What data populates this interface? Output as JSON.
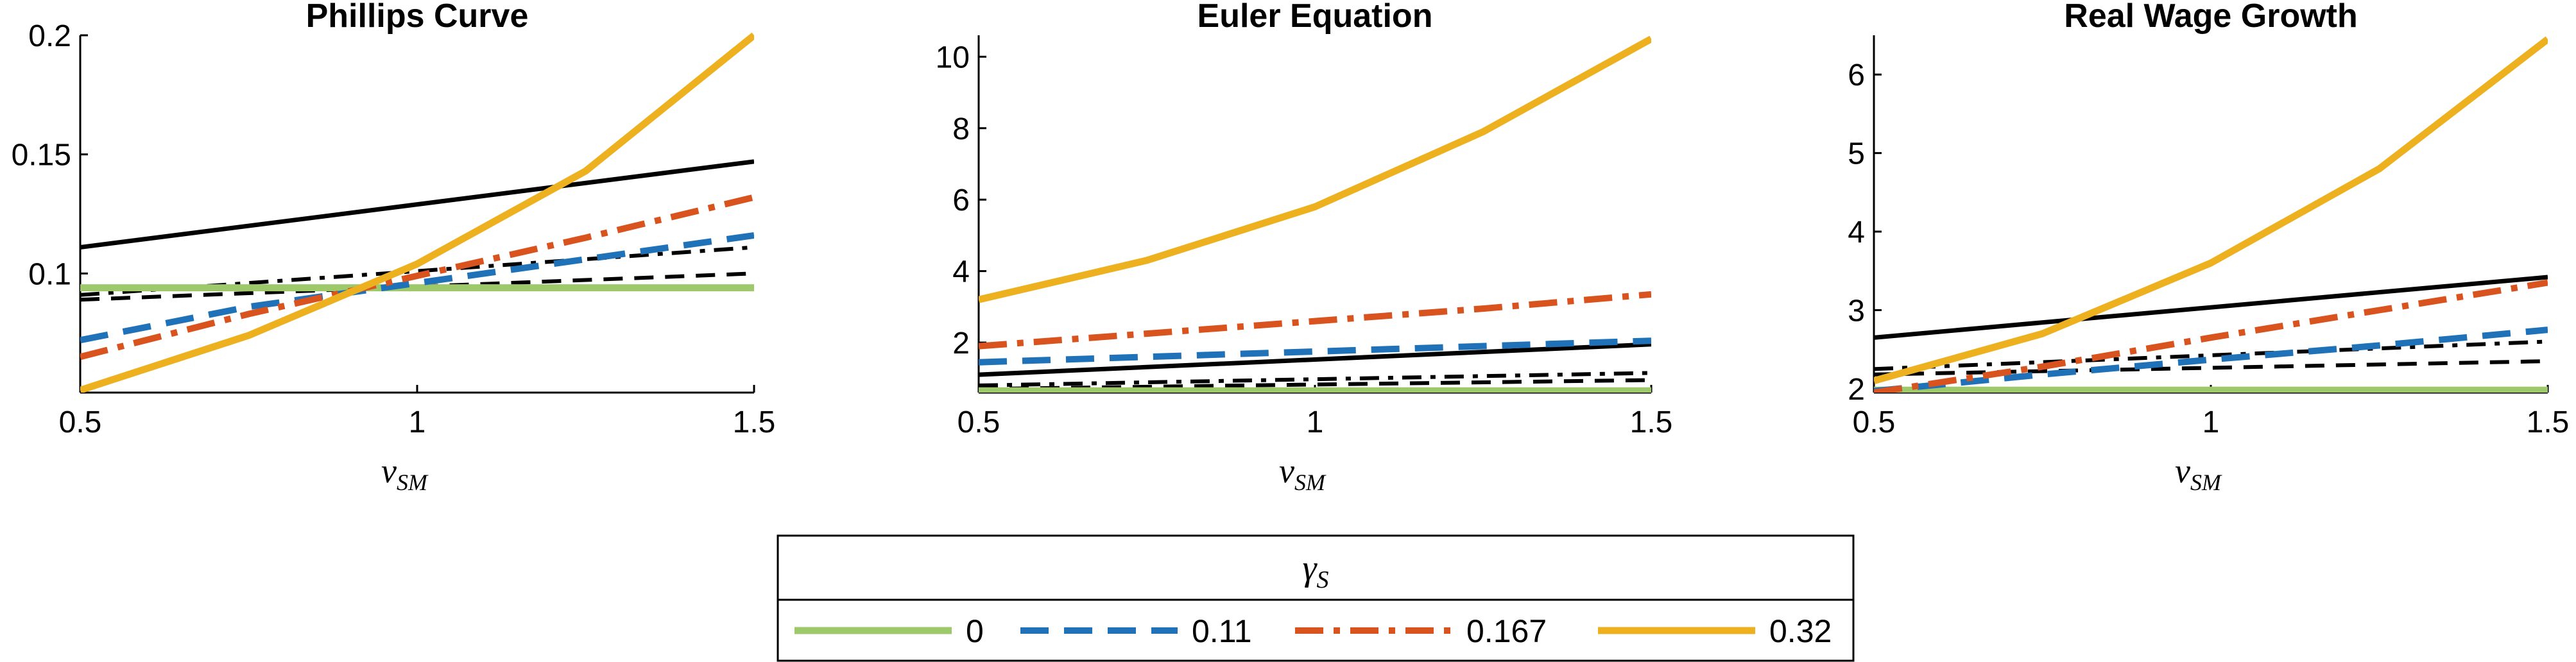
{
  "chart_data": [
    {
      "type": "line",
      "title": "Phillips Curve",
      "xlabel": "ν",
      "xlabel_sub": "SM",
      "xlim": [
        0.5,
        1.5
      ],
      "ylim": [
        0.05,
        0.2
      ],
      "xticks": [
        "0.5",
        "1",
        "1.5"
      ],
      "yticks": [
        "0.1",
        "0.15",
        "0.2"
      ],
      "series": [
        {
          "name": "0",
          "x": [
            0.5,
            1.5
          ],
          "y": [
            0.094,
            0.094
          ]
        },
        {
          "name": "0.11",
          "x": [
            0.5,
            0.75,
            1.0,
            1.25,
            1.5
          ],
          "y": [
            0.072,
            0.086,
            0.096,
            0.106,
            0.116
          ]
        },
        {
          "name": "0.167",
          "x": [
            0.5,
            0.75,
            1.0,
            1.25,
            1.5
          ],
          "y": [
            0.065,
            0.083,
            0.099,
            0.115,
            0.132
          ]
        },
        {
          "name": "0.32",
          "x": [
            0.5,
            0.75,
            1.0,
            1.25,
            1.5
          ],
          "y": [
            0.051,
            0.074,
            0.104,
            0.143,
            0.2
          ]
        },
        {
          "x": [
            0.5,
            1.5
          ],
          "y": [
            0.111,
            0.147
          ]
        },
        {
          "x": [
            0.5,
            1.5
          ],
          "y": [
            0.091,
            0.111
          ]
        },
        {
          "x": [
            0.5,
            1.5
          ],
          "y": [
            0.089,
            0.1
          ]
        }
      ]
    },
    {
      "type": "line",
      "title": "Euler Equation",
      "xlabel": "ν",
      "xlabel_sub": "SM",
      "xlim": [
        0.5,
        1.5
      ],
      "ylim": [
        0.6,
        10.6
      ],
      "xticks": [
        "0.5",
        "1",
        "1.5"
      ],
      "yticks": [
        "2",
        "4",
        "6",
        "8",
        "10"
      ],
      "series": [
        {
          "name": "0",
          "x": [
            0.5,
            1.5
          ],
          "y": [
            0.65,
            0.65
          ]
        },
        {
          "name": "0.11",
          "x": [
            0.5,
            1.5
          ],
          "y": [
            1.45,
            2.05
          ]
        },
        {
          "name": "0.167",
          "x": [
            0.5,
            0.75,
            1.0,
            1.25,
            1.5
          ],
          "y": [
            1.9,
            2.25,
            2.6,
            2.95,
            3.35
          ]
        },
        {
          "name": "0.32",
          "x": [
            0.5,
            0.75,
            1.0,
            1.25,
            1.5
          ],
          "y": [
            3.2,
            4.3,
            5.8,
            7.9,
            10.5
          ]
        },
        {
          "x": [
            0.5,
            1.5
          ],
          "y": [
            1.1,
            1.95
          ]
        },
        {
          "x": [
            0.5,
            1.5
          ],
          "y": [
            0.8,
            1.15
          ]
        },
        {
          "x": [
            0.5,
            1.5
          ],
          "y": [
            0.7,
            0.95
          ]
        }
      ]
    },
    {
      "type": "line",
      "title": "Real Wage Growth",
      "xlabel": "ν",
      "xlabel_sub": "SM",
      "xlim": [
        0.5,
        1.5
      ],
      "ylim": [
        1.95,
        6.5
      ],
      "xticks": [
        "0.5",
        "1",
        "1.5"
      ],
      "yticks": [
        "2",
        "3",
        "4",
        "5",
        "6"
      ],
      "series": [
        {
          "name": "0",
          "x": [
            0.5,
            1.5
          ],
          "y": [
            1.98,
            1.98
          ]
        },
        {
          "name": "0.11",
          "x": [
            0.5,
            0.75,
            1.0,
            1.25,
            1.5
          ],
          "y": [
            1.97,
            2.18,
            2.37,
            2.55,
            2.75
          ]
        },
        {
          "name": "0.167",
          "x": [
            0.5,
            0.75,
            1.0,
            1.25,
            1.5
          ],
          "y": [
            1.95,
            2.28,
            2.65,
            3.0,
            3.35
          ]
        },
        {
          "name": "0.32",
          "x": [
            0.5,
            0.75,
            1.0,
            1.25,
            1.5
          ],
          "y": [
            2.1,
            2.7,
            3.6,
            4.8,
            6.45
          ]
        },
        {
          "x": [
            0.5,
            1.5
          ],
          "y": [
            2.65,
            3.42
          ]
        },
        {
          "x": [
            0.5,
            1.5
          ],
          "y": [
            2.25,
            2.6
          ]
        },
        {
          "x": [
            0.5,
            1.5
          ],
          "y": [
            2.18,
            2.35
          ]
        }
      ]
    }
  ],
  "legend": {
    "title": "γ",
    "title_sub": "S",
    "items": [
      {
        "label": "0",
        "color": "#9dc96a",
        "style": "solid"
      },
      {
        "label": "0.11",
        "color": "#1f72b8",
        "style": "dashed"
      },
      {
        "label": "0.167",
        "color": "#d9531e",
        "style": "dashdot"
      },
      {
        "label": "0.32",
        "color": "#edb120",
        "style": "solid"
      }
    ]
  },
  "colors": {
    "green": "#9dc96a",
    "blue": "#1f72b8",
    "orange": "#d9531e",
    "yellow": "#edb120",
    "black": "#000000"
  }
}
